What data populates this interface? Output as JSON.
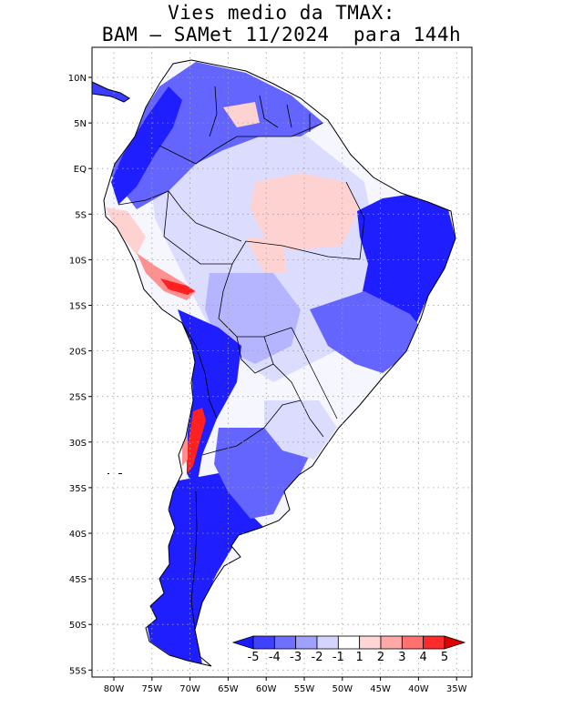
{
  "title": {
    "line1": "Vies medio da TMAX:",
    "line2": "BAM – SAMet 11/2024  para 144h"
  },
  "axes": {
    "lat_labels": [
      "10N",
      "5N",
      "EQ",
      "5S",
      "10S",
      "15S",
      "20S",
      "25S",
      "30S",
      "35S",
      "40S",
      "45S",
      "50S",
      "55S"
    ],
    "lon_labels": [
      "80W",
      "75W",
      "70W",
      "65W",
      "60W",
      "55W",
      "50W",
      "45W",
      "40W",
      "35W"
    ]
  },
  "colorbar": {
    "labels": [
      "-5",
      "-4",
      "-3",
      "-2",
      "-1",
      "1",
      "2",
      "3",
      "4",
      "5"
    ],
    "colors": [
      "#1a1aff",
      "#4040ff",
      "#7070ff",
      "#a0a0ff",
      "#d4d4ff",
      "#ffffff",
      "#ffd6d6",
      "#ffa8a8",
      "#ff7070",
      "#ff2a2a",
      "#e00000"
    ]
  },
  "map_colors": {
    "ocean": "#ffffff",
    "strong_cool": "#1e1eff",
    "moderate_cool": "#6464ff",
    "light_cool": "#b4b4ff",
    "pale_cool": "#dcdcff",
    "neutral": "#f6f6ff",
    "light_warm": "#ffd2d2",
    "warm": "#ff9090",
    "hot": "#ff2020",
    "border": "#000000",
    "grid": "#a0a0a0"
  }
}
